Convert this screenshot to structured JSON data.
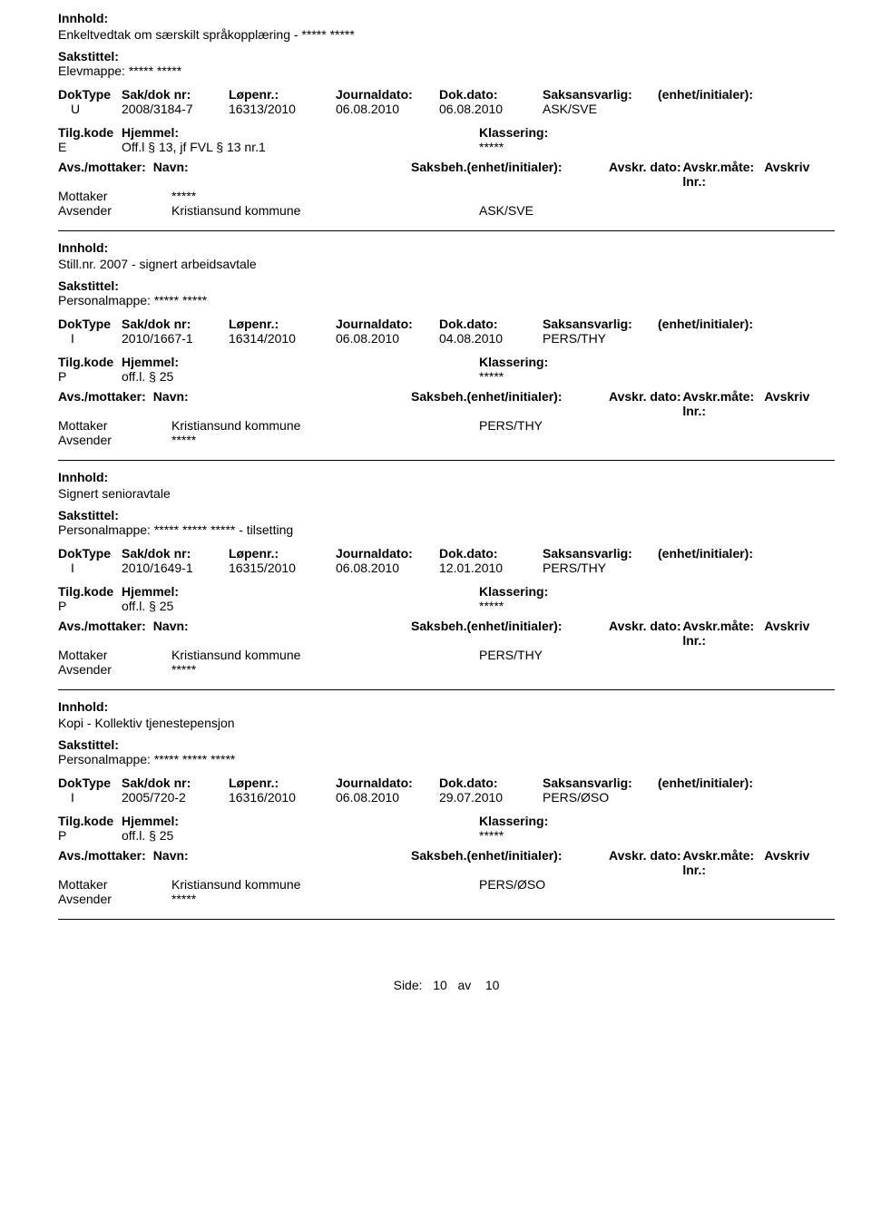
{
  "labels": {
    "innhold": "Innhold:",
    "sakstittel": "Sakstittel:",
    "doktype": "DokType",
    "sakdok": "Sak/dok nr:",
    "lopenr": "Løpenr.:",
    "journaldato": "Journaldato:",
    "dokdato": "Dok.dato:",
    "saksansvarlig": "Saksansvarlig:",
    "enhet": "(enhet/initialer):",
    "tilgkode": "Tilg.kode",
    "hjemmel": "Hjemmel:",
    "klassering": "Klassering:",
    "avsmottaker": "Avs./mottaker:",
    "navn": "Navn:",
    "saksbeh": "Saksbeh.(enhet/initialer):",
    "avskrdato": "Avskr. dato:",
    "avskrmate": "Avskr.måte:",
    "avskrivlnr": "Avskriv lnr.:",
    "mottaker": "Mottaker",
    "avsender": "Avsender"
  },
  "entries": [
    {
      "innhold": "Enkeltvedtak om særskilt språkopplæring - ***** *****",
      "sakstittel": "Elevmappe:  ***** *****",
      "doktype": "U",
      "sakdok": "2008/3184-7",
      "lopenr": "16313/2010",
      "journaldato": "06.08.2010",
      "dokdato": "06.08.2010",
      "saksansvarlig": "ASK/SVE",
      "tilgkode": "E",
      "hjemmel": "Off.l § 13, jf FVL § 13 nr.1",
      "klassering": "*****",
      "parties": [
        {
          "role": "Mottaker",
          "name": "*****",
          "saksbeh": ""
        },
        {
          "role": "Avsender",
          "name": "Kristiansund kommune",
          "saksbeh": "ASK/SVE"
        }
      ]
    },
    {
      "innhold": "Still.nr. 2007 - signert arbeidsavtale",
      "sakstittel": "Personalmappe: ***** *****",
      "doktype": "I",
      "sakdok": "2010/1667-1",
      "lopenr": "16314/2010",
      "journaldato": "06.08.2010",
      "dokdato": "04.08.2010",
      "saksansvarlig": "PERS/THY",
      "tilgkode": "P",
      "hjemmel": "off.l. § 25",
      "klassering": "*****",
      "parties": [
        {
          "role": "Mottaker",
          "name": "Kristiansund kommune",
          "saksbeh": "PERS/THY"
        },
        {
          "role": "Avsender",
          "name": "*****",
          "saksbeh": ""
        }
      ]
    },
    {
      "innhold": "Signert senioravtale",
      "sakstittel": "Personalmappe: ***** ***** ***** - tilsetting",
      "doktype": "I",
      "sakdok": "2010/1649-1",
      "lopenr": "16315/2010",
      "journaldato": "06.08.2010",
      "dokdato": "12.01.2010",
      "saksansvarlig": "PERS/THY",
      "tilgkode": "P",
      "hjemmel": "off.l. § 25",
      "klassering": "*****",
      "parties": [
        {
          "role": "Mottaker",
          "name": "Kristiansund kommune",
          "saksbeh": "PERS/THY"
        },
        {
          "role": "Avsender",
          "name": "*****",
          "saksbeh": ""
        }
      ]
    },
    {
      "innhold": "Kopi - Kollektiv tjenestepensjon",
      "sakstittel": "Personalmappe: ***** ***** *****",
      "doktype": "I",
      "sakdok": "2005/720-2",
      "lopenr": "16316/2010",
      "journaldato": "06.08.2010",
      "dokdato": "29.07.2010",
      "saksansvarlig": "PERS/ØSO",
      "tilgkode": "P",
      "hjemmel": "off.l. § 25",
      "klassering": "*****",
      "parties": [
        {
          "role": "Mottaker",
          "name": "Kristiansund kommune",
          "saksbeh": "PERS/ØSO"
        },
        {
          "role": "Avsender",
          "name": "*****",
          "saksbeh": ""
        }
      ]
    }
  ],
  "footer": {
    "side_label": "Side:",
    "page": "10",
    "av": "av",
    "total": "10"
  }
}
